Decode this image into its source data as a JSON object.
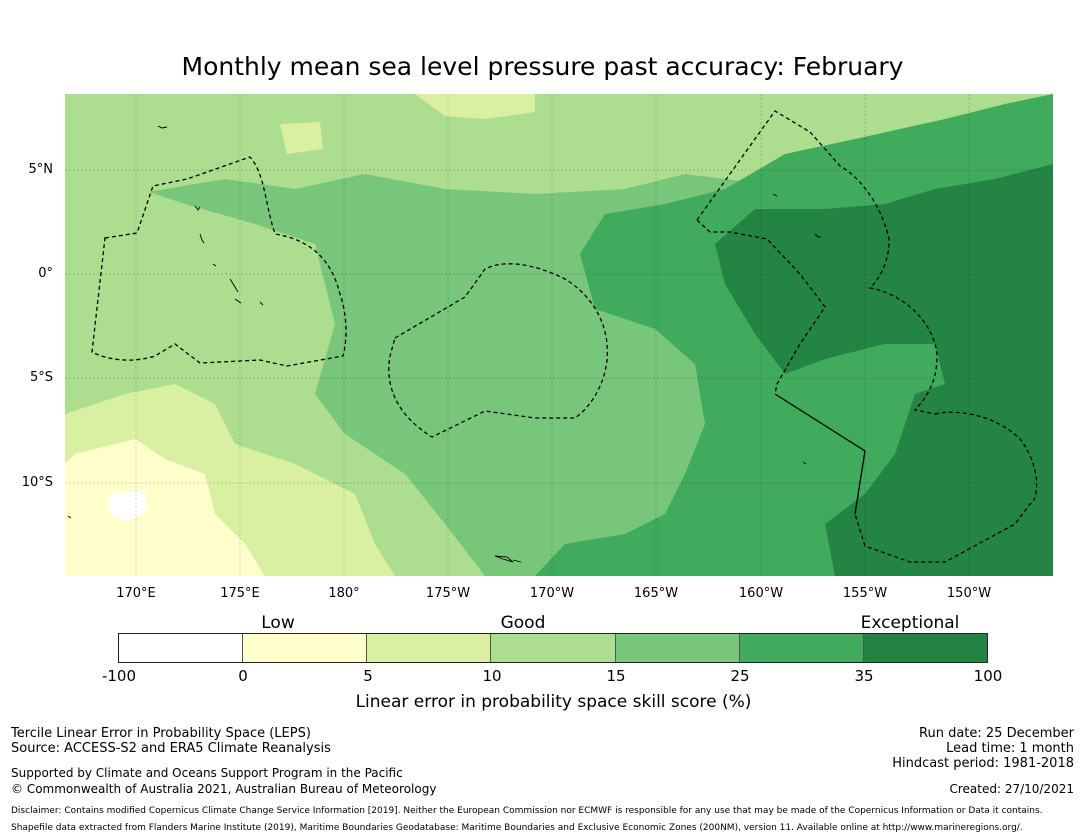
{
  "title": "Monthly mean sea level pressure past accuracy: February",
  "map": {
    "lat_labels": [
      "5°N",
      "0°",
      "5°S",
      "10°S"
    ],
    "lon_labels": [
      "170°E",
      "175°E",
      "180°",
      "175°W",
      "170°W",
      "165°W",
      "160°W",
      "155°W",
      "150°W"
    ]
  },
  "legend": {
    "categories": [
      "Low",
      "Good",
      "Exceptional"
    ],
    "ticks": [
      "-100",
      "0",
      "5",
      "10",
      "15",
      "25",
      "35",
      "100"
    ],
    "colors": [
      "#ffffff",
      "#ffffcc",
      "#d9f0a3",
      "#addd8e",
      "#78c679",
      "#41ab5d",
      "#238443"
    ],
    "label": "Linear error in probability space skill score (%)"
  },
  "footer": {
    "method": "Tercile Linear Error in Probability Space (LEPS)",
    "source": "Source: ACCESS-S2 and ERA5 Climate Reanalysis",
    "support": "Supported by Climate and Oceans Support Program in the Pacific",
    "copyright": "© Commonwealth of Australia 2021, Australian Bureau of Meteorology",
    "run_date": "Run date: 25 December",
    "lead_time": "Lead time: 1 month",
    "hindcast": "Hindcast period: 1981-2018",
    "created": "Created: 27/10/2021",
    "disclaimer": "Disclaimer: Contains modified Copernicus Climate Change Service Information [2019]. Neither the European Commission nor ECMWF is responsible for any use that may be made of the Copernicus Information or Data it contains.",
    "shapefile": "Shapefile data extracted from Flanders Marine Institute (2019), Maritime Boundaries Geodatabase: Maritime Boundaries and Exclusive Economic Zones (200NM), version 11. Available online at http://www.marineregions.org/."
  }
}
